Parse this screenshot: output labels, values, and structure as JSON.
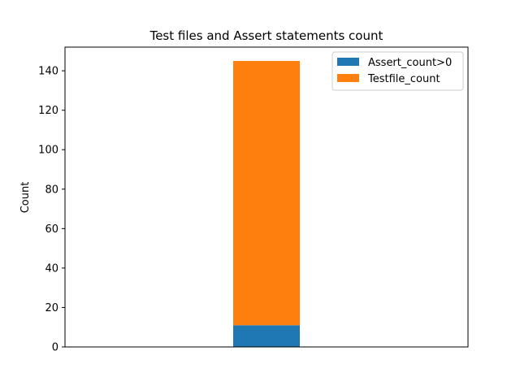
{
  "chart_data": {
    "type": "bar",
    "stacked": true,
    "title": "Test files and Assert statements count",
    "xlabel": "",
    "ylabel": "Count",
    "categories": [
      ""
    ],
    "ylim": [
      0,
      152
    ],
    "yticks": [
      0,
      20,
      40,
      60,
      80,
      100,
      120,
      140
    ],
    "series": [
      {
        "name": "Assert_count>0",
        "values": [
          11
        ],
        "color": "#1f77b4"
      },
      {
        "name": "Testfile_count",
        "values": [
          134
        ],
        "color": "#ff7f0e"
      }
    ],
    "legend": {
      "position": "top-right"
    },
    "grid": false
  }
}
